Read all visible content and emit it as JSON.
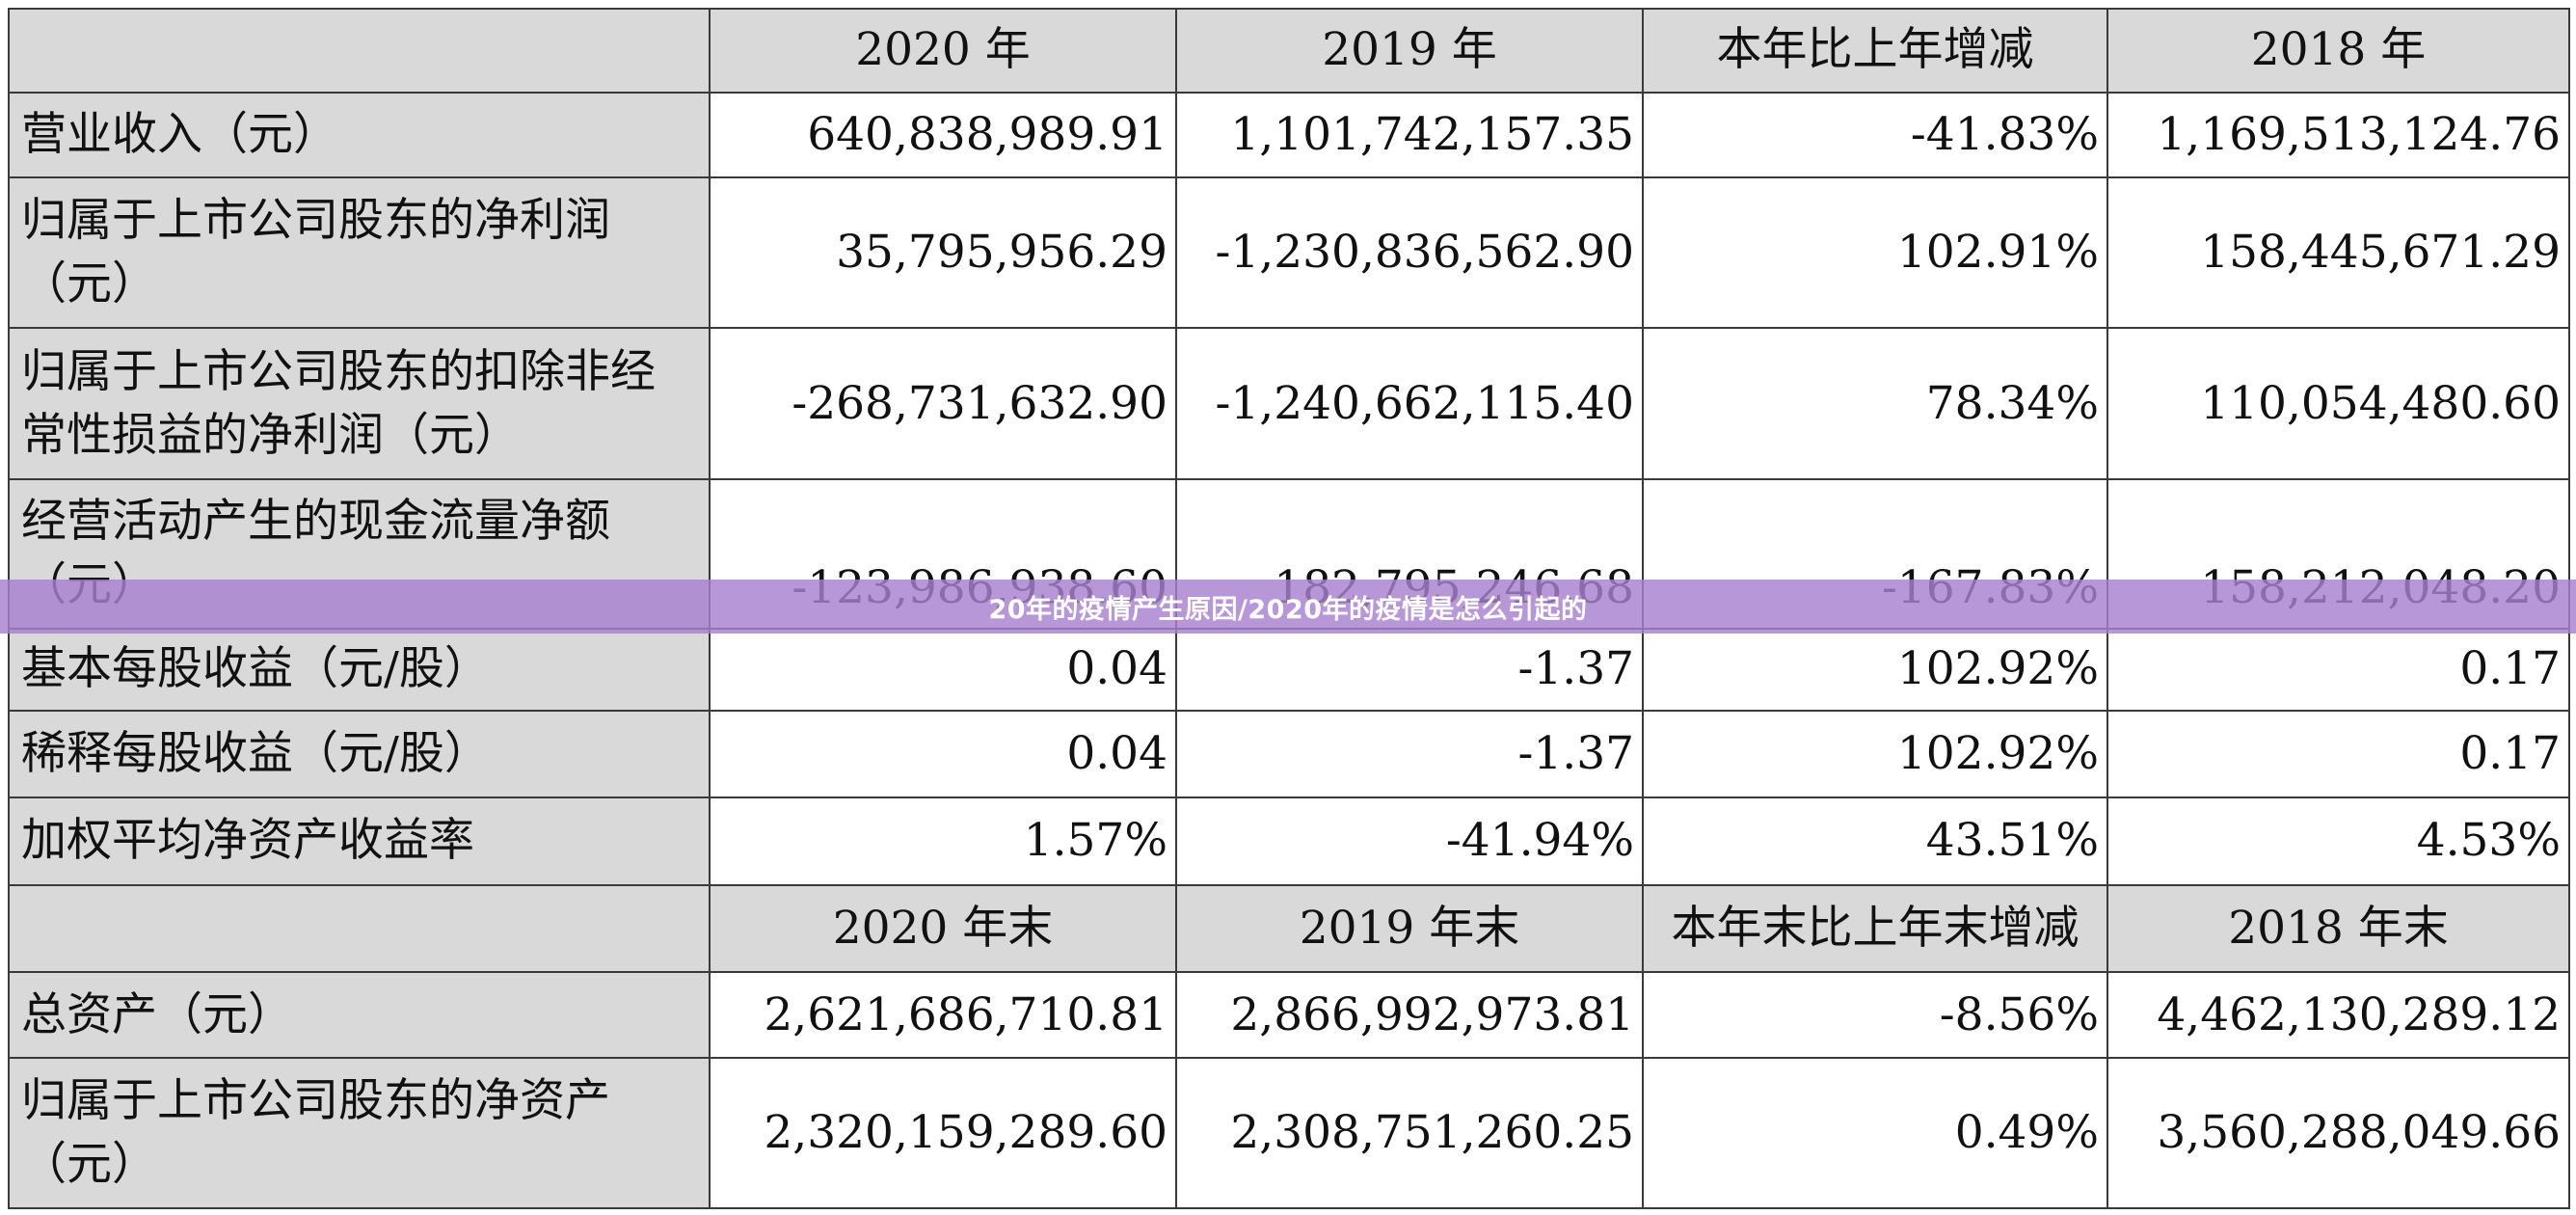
{
  "overlay": {
    "caption": "20年的疫情产生原因/2020年的疫情是怎么引起的"
  },
  "table": {
    "header_annual": [
      "",
      "2020 年",
      "2019 年",
      "本年比上年增减",
      "2018 年"
    ],
    "rows_annual": [
      {
        "label": "营业收入（元）",
        "values": [
          "640,838,989.91",
          "1,101,742,157.35",
          "-41.83%",
          "1,169,513,124.76"
        ]
      },
      {
        "label": "归属于上市公司股东的净利润（元）",
        "values": [
          "35,795,956.29",
          "-1,230,836,562.90",
          "102.91%",
          "158,445,671.29"
        ]
      },
      {
        "label": "归属于上市公司股东的扣除非经常性损益的净利润（元）",
        "values": [
          "-268,731,632.90",
          "-1,240,662,115.40",
          "78.34%",
          "110,054,480.60"
        ]
      },
      {
        "label": "经营活动产生的现金流量净额（元）",
        "values": [
          "-123,986,938.60",
          "182,795,246.68",
          "-167.83%",
          "158,212,048.20"
        ]
      },
      {
        "label": "基本每股收益（元/股）",
        "values": [
          "0.04",
          "-1.37",
          "102.92%",
          "0.17"
        ]
      },
      {
        "label": "稀释每股收益（元/股）",
        "values": [
          "0.04",
          "-1.37",
          "102.92%",
          "0.17"
        ]
      },
      {
        "label": "加权平均净资产收益率",
        "values": [
          "1.57%",
          "-41.94%",
          "43.51%",
          "4.53%"
        ]
      }
    ],
    "header_yearend": [
      "",
      "2020 年末",
      "2019 年末",
      "本年末比上年末增减",
      "2018 年末"
    ],
    "rows_yearend": [
      {
        "label": "总资产（元）",
        "values": [
          "2,621,686,710.81",
          "2,866,992,973.81",
          "-8.56%",
          "4,462,130,289.12"
        ]
      },
      {
        "label": "归属于上市公司股东的净资产（元）",
        "values": [
          "2,320,159,289.60",
          "2,308,751,260.25",
          "0.49%",
          "3,560,288,049.66"
        ]
      }
    ]
  }
}
